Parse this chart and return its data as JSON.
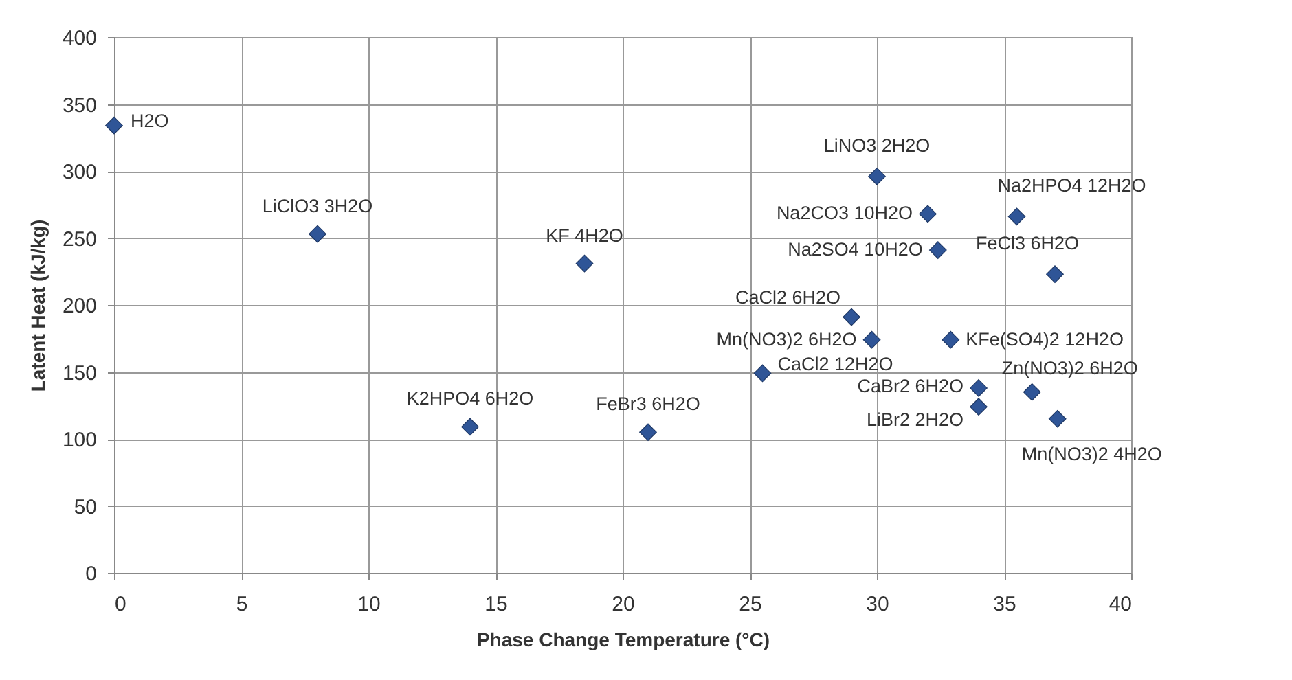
{
  "chart_data": {
    "type": "scatter",
    "xlabel": "Phase Change Temperature (°C)",
    "ylabel": "Latent Heat (kJ/kg)",
    "x": [
      0,
      8,
      18.5,
      14,
      21,
      25.5,
      29,
      29.8,
      30,
      32,
      32.4,
      35.5,
      37,
      32.9,
      34,
      34,
      36.1,
      37.1
    ],
    "series": [
      {
        "color": "#2f5597",
        "values": [
          334,
          253,
          231,
          109,
          105,
          149,
          191,
          174,
          296,
          268,
          241,
          266,
          223,
          174,
          138,
          124,
          135,
          115
        ]
      }
    ],
    "xlim": [
      0,
      40
    ],
    "xticks": [
      0,
      5,
      10,
      15,
      20,
      25,
      30,
      35,
      40
    ],
    "ylim": [
      0,
      400
    ],
    "yticks": [
      0,
      50,
      100,
      150,
      200,
      250,
      300,
      350,
      400
    ],
    "grid": true,
    "marker": "diamond",
    "annotations": [
      {
        "text": "H2O",
        "x": 0,
        "y": 334
      },
      {
        "text": "LiClO3 3H2O",
        "x": 8,
        "y": 253
      },
      {
        "text": "KF 4H2O",
        "x": 18.5,
        "y": 231
      },
      {
        "text": "K2HPO4 6H2O",
        "x": 14,
        "y": 109
      },
      {
        "text": "FeBr3 6H2O",
        "x": 21,
        "y": 105
      },
      {
        "text": "CaCl2 12H2O",
        "x": 25.5,
        "y": 149
      },
      {
        "text": "CaCl2 6H2O",
        "x": 29,
        "y": 191
      },
      {
        "text": "Mn(NO3)2 6H2O",
        "x": 29.8,
        "y": 174
      },
      {
        "text": "LiNO3 2H2O",
        "x": 30,
        "y": 296
      },
      {
        "text": "Na2CO3 10H2O",
        "x": 32,
        "y": 268
      },
      {
        "text": "Na2SO4 10H2O",
        "x": 32.4,
        "y": 241
      },
      {
        "text": "Na2HPO4 12H2O",
        "x": 35.5,
        "y": 266
      },
      {
        "text": "FeCl3 6H2O",
        "x": 37,
        "y": 223
      },
      {
        "text": "KFe(SO4)2 12H2O",
        "x": 32.9,
        "y": 174
      },
      {
        "text": "CaBr2 6H2O",
        "x": 34,
        "y": 138
      },
      {
        "text": "LiBr2 2H2O",
        "x": 34,
        "y": 124
      },
      {
        "text": "Zn(NO3)2 6H2O",
        "x": 36.1,
        "y": 135
      },
      {
        "text": "Mn(NO3)2 4H2O",
        "x": 37.1,
        "y": 115
      }
    ]
  }
}
